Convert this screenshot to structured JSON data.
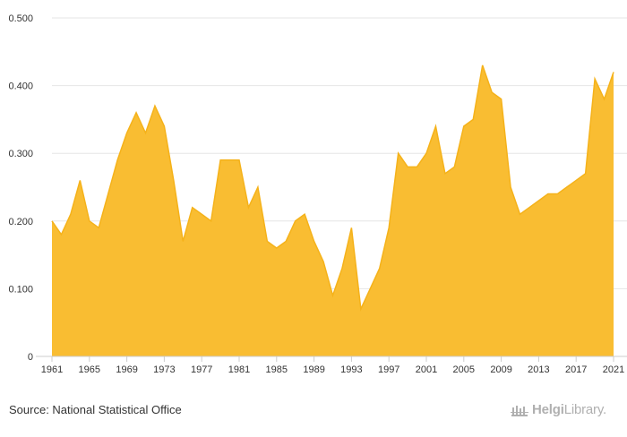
{
  "chart_data": {
    "type": "area",
    "title": "",
    "xlabel": "",
    "ylabel": "",
    "ylim": [
      0,
      0.5
    ],
    "xlim": [
      1961,
      2021
    ],
    "y_ticks": [
      "0",
      "0.100",
      "0.200",
      "0.300",
      "0.400",
      "0.500"
    ],
    "y_tick_values": [
      0,
      0.1,
      0.2,
      0.3,
      0.4,
      0.5
    ],
    "x_ticks": [
      "1961",
      "1965",
      "1969",
      "1973",
      "1977",
      "1981",
      "1985",
      "1989",
      "1993",
      "1997",
      "2001",
      "2005",
      "2009",
      "2013",
      "2017",
      "2021"
    ],
    "x_tick_values": [
      1961,
      1965,
      1969,
      1973,
      1977,
      1981,
      1985,
      1989,
      1993,
      1997,
      2001,
      2005,
      2009,
      2013,
      2017,
      2021
    ],
    "x": [
      1961,
      1962,
      1963,
      1964,
      1965,
      1966,
      1967,
      1968,
      1969,
      1970,
      1971,
      1972,
      1973,
      1974,
      1975,
      1976,
      1977,
      1978,
      1979,
      1980,
      1981,
      1982,
      1983,
      1984,
      1985,
      1986,
      1987,
      1988,
      1989,
      1990,
      1991,
      1992,
      1993,
      1994,
      1995,
      1996,
      1997,
      1998,
      1999,
      2000,
      2001,
      2002,
      2003,
      2004,
      2005,
      2006,
      2007,
      2008,
      2009,
      2010,
      2011,
      2012,
      2013,
      2014,
      2015,
      2016,
      2017,
      2018,
      2019,
      2020,
      2021
    ],
    "values": [
      0.2,
      0.18,
      0.21,
      0.26,
      0.2,
      0.19,
      0.24,
      0.29,
      0.33,
      0.36,
      0.33,
      0.37,
      0.34,
      0.26,
      0.17,
      0.22,
      0.21,
      0.2,
      0.29,
      0.29,
      0.29,
      0.22,
      0.25,
      0.17,
      0.16,
      0.17,
      0.2,
      0.21,
      0.17,
      0.14,
      0.09,
      0.13,
      0.19,
      0.07,
      0.1,
      0.13,
      0.19,
      0.3,
      0.28,
      0.28,
      0.3,
      0.34,
      0.27,
      0.28,
      0.34,
      0.35,
      0.43,
      0.39,
      0.38,
      0.25,
      0.21,
      0.22,
      0.23,
      0.24,
      0.24,
      0.25,
      0.26,
      0.27,
      0.41,
      0.38,
      0.42
    ],
    "grid": true,
    "fill_color": "#F9BD32",
    "line_color": "#F5B21A"
  },
  "footer": {
    "source": "Source: National Statistical Office",
    "logo_text_a": "Helgi",
    "logo_text_b": "Library."
  }
}
